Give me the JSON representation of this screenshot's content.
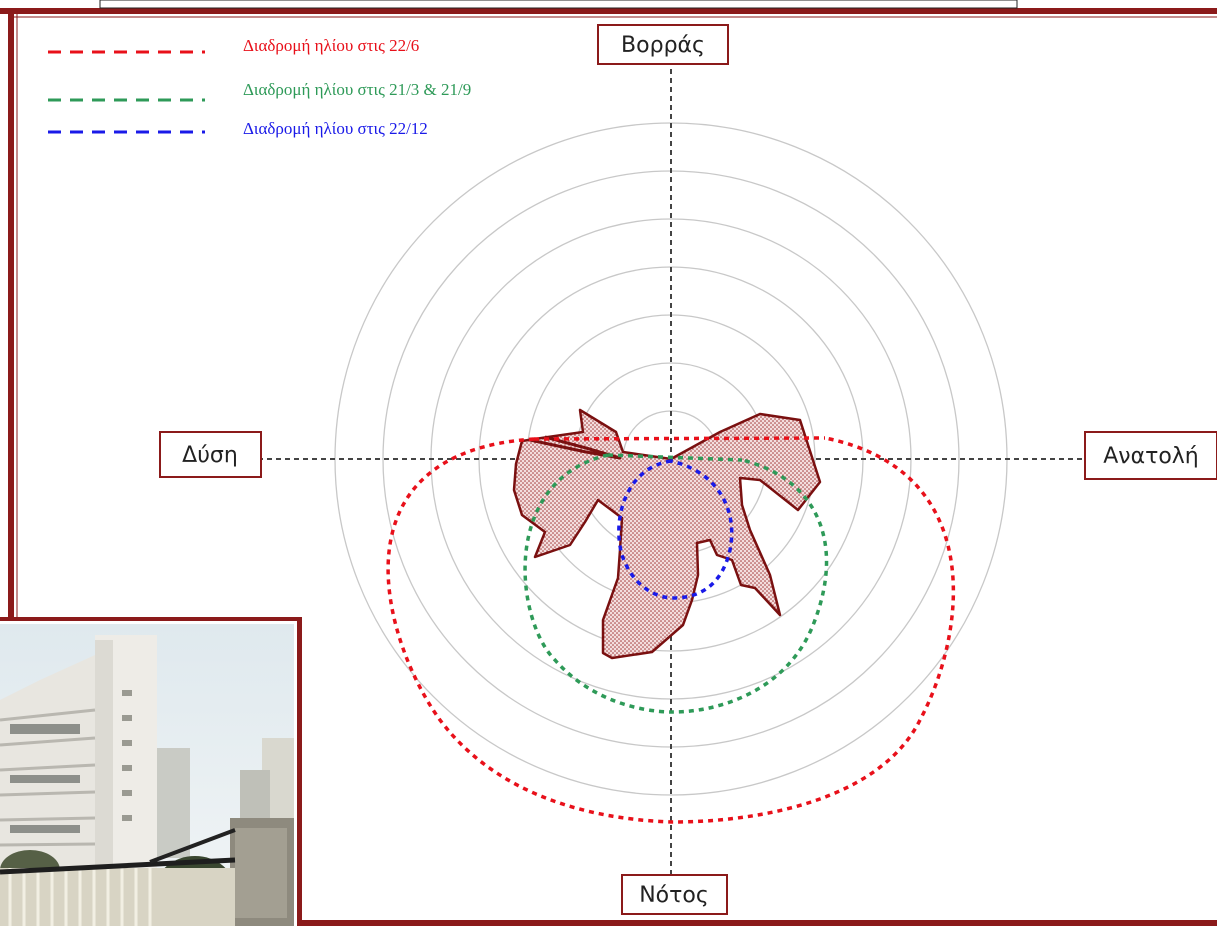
{
  "colors": {
    "frame": "#8b1a1a",
    "summer": "#e8101a",
    "equinox": "#2e9a58",
    "winter": "#1a1ae8",
    "obstruction": "#7a1010",
    "obstruction_fill": "#f3dede",
    "ring": "#c8c8c8",
    "axis": "#444444"
  },
  "legend": [
    {
      "label": "Διαδρομή ηλίου στις 22/6",
      "color": "#e8101a"
    },
    {
      "label": "Διαδρομή ηλίου στις 21/3 & 21/9",
      "color": "#2e9a58"
    },
    {
      "label": "Διαδρομή ηλίου στις 22/12",
      "color": "#1a1ae8"
    }
  ],
  "directions": {
    "north": "Βορράς",
    "south": "Νότος",
    "east": "Ανατολή",
    "west": "Δύση"
  },
  "rings": 7
}
